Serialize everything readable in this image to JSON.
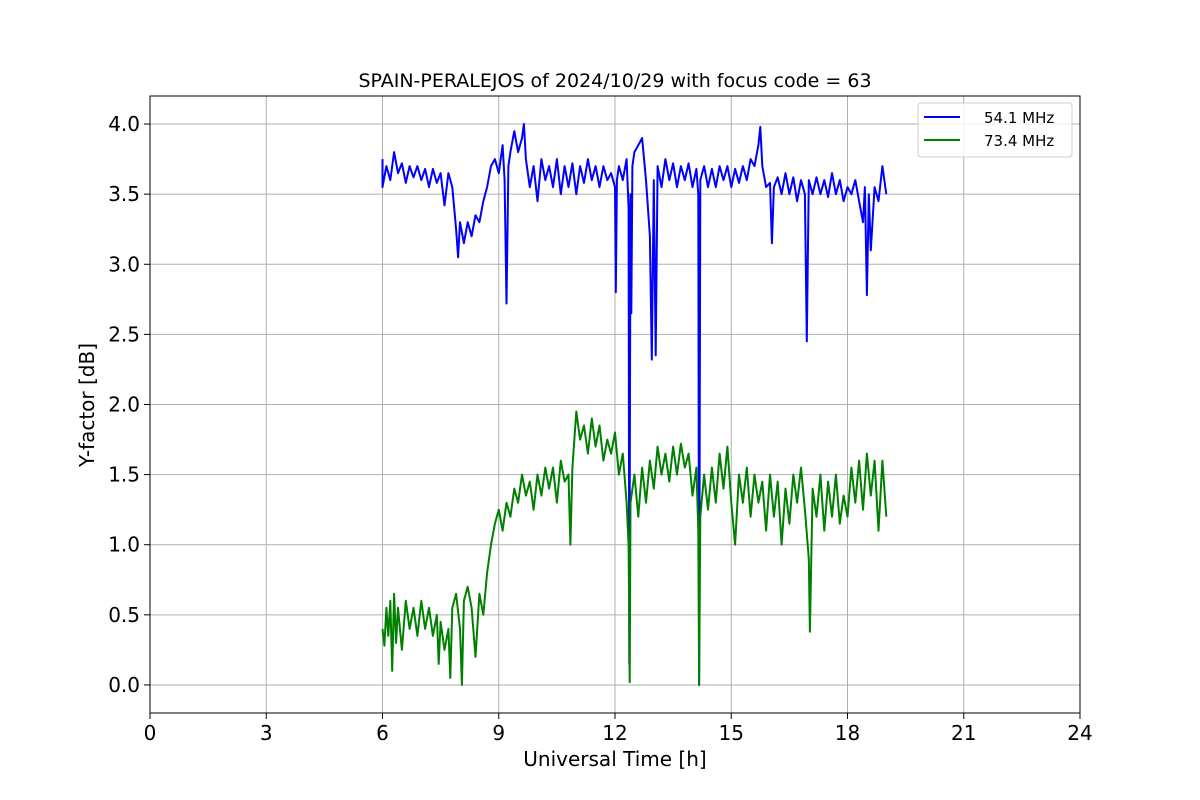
{
  "chart_data": {
    "type": "line",
    "title": "SPAIN-PERALEJOS of 2024/10/29 with focus code = 63",
    "xlabel": "Universal Time [h]",
    "ylabel": "Y-factor [dB]",
    "xlim": [
      0,
      24
    ],
    "ylim": [
      -0.2,
      4.2
    ],
    "xticks": [
      0,
      3,
      6,
      9,
      12,
      15,
      18,
      21,
      24
    ],
    "yticks": [
      0.0,
      0.5,
      1.0,
      1.5,
      2.0,
      2.5,
      3.0,
      3.5,
      4.0
    ],
    "xtick_labels": [
      "0",
      "3",
      "6",
      "9",
      "12",
      "15",
      "18",
      "21",
      "24"
    ],
    "ytick_labels": [
      "0.0",
      "0.5",
      "1.0",
      "1.5",
      "2.0",
      "2.5",
      "3.0",
      "3.5",
      "4.0"
    ],
    "grid": true,
    "legend_position": "top-right",
    "series": [
      {
        "name": "54.1 MHz",
        "color": "#0000ff",
        "points": [
          [
            6.0,
            3.75
          ],
          [
            6.0,
            3.55
          ],
          [
            6.1,
            3.7
          ],
          [
            6.2,
            3.6
          ],
          [
            6.3,
            3.8
          ],
          [
            6.4,
            3.65
          ],
          [
            6.5,
            3.72
          ],
          [
            6.6,
            3.58
          ],
          [
            6.7,
            3.7
          ],
          [
            6.8,
            3.62
          ],
          [
            6.9,
            3.7
          ],
          [
            7.0,
            3.6
          ],
          [
            7.1,
            3.68
          ],
          [
            7.2,
            3.55
          ],
          [
            7.3,
            3.68
          ],
          [
            7.4,
            3.58
          ],
          [
            7.5,
            3.65
          ],
          [
            7.6,
            3.42
          ],
          [
            7.7,
            3.65
          ],
          [
            7.8,
            3.55
          ],
          [
            7.9,
            3.25
          ],
          [
            7.95,
            3.05
          ],
          [
            8.0,
            3.3
          ],
          [
            8.1,
            3.15
          ],
          [
            8.2,
            3.3
          ],
          [
            8.3,
            3.2
          ],
          [
            8.4,
            3.35
          ],
          [
            8.5,
            3.3
          ],
          [
            8.6,
            3.45
          ],
          [
            8.7,
            3.55
          ],
          [
            8.8,
            3.7
          ],
          [
            8.9,
            3.75
          ],
          [
            9.0,
            3.65
          ],
          [
            9.1,
            3.85
          ],
          [
            9.15,
            3.6
          ],
          [
            9.2,
            2.72
          ],
          [
            9.25,
            3.7
          ],
          [
            9.3,
            3.8
          ],
          [
            9.4,
            3.95
          ],
          [
            9.5,
            3.8
          ],
          [
            9.6,
            3.9
          ],
          [
            9.65,
            4.0
          ],
          [
            9.7,
            3.75
          ],
          [
            9.8,
            3.55
          ],
          [
            9.9,
            3.7
          ],
          [
            10.0,
            3.45
          ],
          [
            10.1,
            3.75
          ],
          [
            10.2,
            3.6
          ],
          [
            10.3,
            3.7
          ],
          [
            10.4,
            3.55
          ],
          [
            10.5,
            3.75
          ],
          [
            10.6,
            3.5
          ],
          [
            10.7,
            3.7
          ],
          [
            10.8,
            3.55
          ],
          [
            10.9,
            3.72
          ],
          [
            11.0,
            3.5
          ],
          [
            11.1,
            3.7
          ],
          [
            11.2,
            3.58
          ],
          [
            11.3,
            3.75
          ],
          [
            11.4,
            3.6
          ],
          [
            11.5,
            3.7
          ],
          [
            11.6,
            3.55
          ],
          [
            11.7,
            3.7
          ],
          [
            11.8,
            3.6
          ],
          [
            11.9,
            3.65
          ],
          [
            12.0,
            3.55
          ],
          [
            12.02,
            2.8
          ],
          [
            12.05,
            3.6
          ],
          [
            12.1,
            3.7
          ],
          [
            12.2,
            3.6
          ],
          [
            12.3,
            3.75
          ],
          [
            12.35,
            3.4
          ],
          [
            12.37,
            0.15
          ],
          [
            12.4,
            3.5
          ],
          [
            12.42,
            2.65
          ],
          [
            12.45,
            3.7
          ],
          [
            12.5,
            3.8
          ],
          [
            12.6,
            3.85
          ],
          [
            12.7,
            3.9
          ],
          [
            12.8,
            3.6
          ],
          [
            12.9,
            3.2
          ],
          [
            12.95,
            2.32
          ],
          [
            13.0,
            3.6
          ],
          [
            13.05,
            2.35
          ],
          [
            13.1,
            3.7
          ],
          [
            13.2,
            3.55
          ],
          [
            13.3,
            3.75
          ],
          [
            13.4,
            3.6
          ],
          [
            13.5,
            3.72
          ],
          [
            13.6,
            3.55
          ],
          [
            13.7,
            3.7
          ],
          [
            13.8,
            3.6
          ],
          [
            13.9,
            3.72
          ],
          [
            14.0,
            3.55
          ],
          [
            14.1,
            3.68
          ],
          [
            14.15,
            3.5
          ],
          [
            14.17,
            0.0
          ],
          [
            14.2,
            3.6
          ],
          [
            14.3,
            3.7
          ],
          [
            14.4,
            3.55
          ],
          [
            14.5,
            3.68
          ],
          [
            14.6,
            3.55
          ],
          [
            14.7,
            3.7
          ],
          [
            14.8,
            3.6
          ],
          [
            14.9,
            3.7
          ],
          [
            15.0,
            3.55
          ],
          [
            15.1,
            3.68
          ],
          [
            15.2,
            3.58
          ],
          [
            15.3,
            3.7
          ],
          [
            15.4,
            3.6
          ],
          [
            15.5,
            3.75
          ],
          [
            15.6,
            3.7
          ],
          [
            15.7,
            3.85
          ],
          [
            15.75,
            3.98
          ],
          [
            15.8,
            3.7
          ],
          [
            15.9,
            3.55
          ],
          [
            16.0,
            3.58
          ],
          [
            16.05,
            3.15
          ],
          [
            16.1,
            3.55
          ],
          [
            16.2,
            3.62
          ],
          [
            16.3,
            3.5
          ],
          [
            16.4,
            3.65
          ],
          [
            16.5,
            3.5
          ],
          [
            16.6,
            3.62
          ],
          [
            16.7,
            3.45
          ],
          [
            16.8,
            3.6
          ],
          [
            16.9,
            3.5
          ],
          [
            16.95,
            2.45
          ],
          [
            17.0,
            3.6
          ],
          [
            17.1,
            3.5
          ],
          [
            17.2,
            3.62
          ],
          [
            17.3,
            3.5
          ],
          [
            17.4,
            3.6
          ],
          [
            17.5,
            3.48
          ],
          [
            17.6,
            3.65
          ],
          [
            17.7,
            3.5
          ],
          [
            17.8,
            3.6
          ],
          [
            17.9,
            3.45
          ],
          [
            18.0,
            3.55
          ],
          [
            18.1,
            3.5
          ],
          [
            18.2,
            3.6
          ],
          [
            18.3,
            3.45
          ],
          [
            18.4,
            3.3
          ],
          [
            18.45,
            3.55
          ],
          [
            18.5,
            2.78
          ],
          [
            18.55,
            3.5
          ],
          [
            18.6,
            3.1
          ],
          [
            18.7,
            3.55
          ],
          [
            18.8,
            3.45
          ],
          [
            18.9,
            3.7
          ],
          [
            19.0,
            3.5
          ]
        ]
      },
      {
        "name": "73.4 MHz",
        "color": "#008000",
        "points": [
          [
            6.0,
            0.4
          ],
          [
            6.05,
            0.28
          ],
          [
            6.1,
            0.55
          ],
          [
            6.15,
            0.35
          ],
          [
            6.2,
            0.6
          ],
          [
            6.25,
            0.1
          ],
          [
            6.3,
            0.65
          ],
          [
            6.35,
            0.3
          ],
          [
            6.4,
            0.55
          ],
          [
            6.5,
            0.25
          ],
          [
            6.6,
            0.6
          ],
          [
            6.7,
            0.4
          ],
          [
            6.8,
            0.55
          ],
          [
            6.9,
            0.35
          ],
          [
            7.0,
            0.6
          ],
          [
            7.1,
            0.4
          ],
          [
            7.2,
            0.55
          ],
          [
            7.3,
            0.35
          ],
          [
            7.4,
            0.5
          ],
          [
            7.45,
            0.15
          ],
          [
            7.5,
            0.45
          ],
          [
            7.6,
            0.25
          ],
          [
            7.7,
            0.4
          ],
          [
            7.75,
            0.05
          ],
          [
            7.8,
            0.55
          ],
          [
            7.9,
            0.65
          ],
          [
            8.0,
            0.4
          ],
          [
            8.05,
            0.0
          ],
          [
            8.1,
            0.6
          ],
          [
            8.2,
            0.7
          ],
          [
            8.3,
            0.55
          ],
          [
            8.4,
            0.2
          ],
          [
            8.5,
            0.65
          ],
          [
            8.6,
            0.5
          ],
          [
            8.7,
            0.8
          ],
          [
            8.8,
            1.0
          ],
          [
            8.9,
            1.15
          ],
          [
            9.0,
            1.25
          ],
          [
            9.1,
            1.1
          ],
          [
            9.2,
            1.3
          ],
          [
            9.3,
            1.2
          ],
          [
            9.4,
            1.4
          ],
          [
            9.5,
            1.3
          ],
          [
            9.6,
            1.5
          ],
          [
            9.7,
            1.35
          ],
          [
            9.8,
            1.45
          ],
          [
            9.9,
            1.25
          ],
          [
            10.0,
            1.5
          ],
          [
            10.1,
            1.35
          ],
          [
            10.2,
            1.55
          ],
          [
            10.3,
            1.4
          ],
          [
            10.4,
            1.55
          ],
          [
            10.5,
            1.3
          ],
          [
            10.6,
            1.6
          ],
          [
            10.7,
            1.45
          ],
          [
            10.8,
            1.5
          ],
          [
            10.85,
            1.0
          ],
          [
            10.9,
            1.55
          ],
          [
            11.0,
            1.95
          ],
          [
            11.1,
            1.75
          ],
          [
            11.2,
            1.85
          ],
          [
            11.3,
            1.65
          ],
          [
            11.4,
            1.9
          ],
          [
            11.5,
            1.7
          ],
          [
            11.6,
            1.85
          ],
          [
            11.7,
            1.6
          ],
          [
            11.8,
            1.75
          ],
          [
            11.9,
            1.65
          ],
          [
            12.0,
            1.8
          ],
          [
            12.1,
            1.5
          ],
          [
            12.2,
            1.65
          ],
          [
            12.3,
            1.3
          ],
          [
            12.35,
            1.0
          ],
          [
            12.38,
            0.02
          ],
          [
            12.4,
            1.3
          ],
          [
            12.5,
            1.5
          ],
          [
            12.6,
            1.2
          ],
          [
            12.7,
            1.55
          ],
          [
            12.8,
            1.3
          ],
          [
            12.9,
            1.6
          ],
          [
            13.0,
            1.4
          ],
          [
            13.1,
            1.7
          ],
          [
            13.2,
            1.5
          ],
          [
            13.3,
            1.65
          ],
          [
            13.4,
            1.45
          ],
          [
            13.5,
            1.7
          ],
          [
            13.6,
            1.5
          ],
          [
            13.7,
            1.72
          ],
          [
            13.8,
            1.55
          ],
          [
            13.9,
            1.65
          ],
          [
            14.0,
            1.35
          ],
          [
            14.1,
            1.55
          ],
          [
            14.15,
            1.1
          ],
          [
            14.17,
            0.0
          ],
          [
            14.2,
            1.2
          ],
          [
            14.3,
            1.5
          ],
          [
            14.4,
            1.25
          ],
          [
            14.5,
            1.55
          ],
          [
            14.6,
            1.3
          ],
          [
            14.7,
            1.65
          ],
          [
            14.8,
            1.4
          ],
          [
            14.9,
            1.7
          ],
          [
            15.0,
            1.3
          ],
          [
            15.1,
            1.0
          ],
          [
            15.2,
            1.5
          ],
          [
            15.3,
            1.3
          ],
          [
            15.4,
            1.55
          ],
          [
            15.5,
            1.2
          ],
          [
            15.6,
            1.5
          ],
          [
            15.7,
            1.3
          ],
          [
            15.8,
            1.45
          ],
          [
            15.9,
            1.1
          ],
          [
            16.0,
            1.5
          ],
          [
            16.1,
            1.2
          ],
          [
            16.2,
            1.45
          ],
          [
            16.3,
            1.0
          ],
          [
            16.4,
            1.4
          ],
          [
            16.5,
            1.15
          ],
          [
            16.6,
            1.5
          ],
          [
            16.7,
            1.3
          ],
          [
            16.8,
            1.55
          ],
          [
            16.9,
            1.25
          ],
          [
            17.0,
            0.9
          ],
          [
            17.03,
            0.38
          ],
          [
            17.1,
            1.4
          ],
          [
            17.2,
            1.2
          ],
          [
            17.3,
            1.5
          ],
          [
            17.4,
            1.1
          ],
          [
            17.5,
            1.45
          ],
          [
            17.6,
            1.2
          ],
          [
            17.7,
            1.5
          ],
          [
            17.8,
            1.15
          ],
          [
            17.9,
            1.35
          ],
          [
            18.0,
            1.2
          ],
          [
            18.1,
            1.55
          ],
          [
            18.2,
            1.3
          ],
          [
            18.3,
            1.6
          ],
          [
            18.4,
            1.25
          ],
          [
            18.5,
            1.65
          ],
          [
            18.6,
            1.35
          ],
          [
            18.7,
            1.6
          ],
          [
            18.8,
            1.1
          ],
          [
            18.9,
            1.6
          ],
          [
            19.0,
            1.2
          ]
        ]
      }
    ]
  }
}
